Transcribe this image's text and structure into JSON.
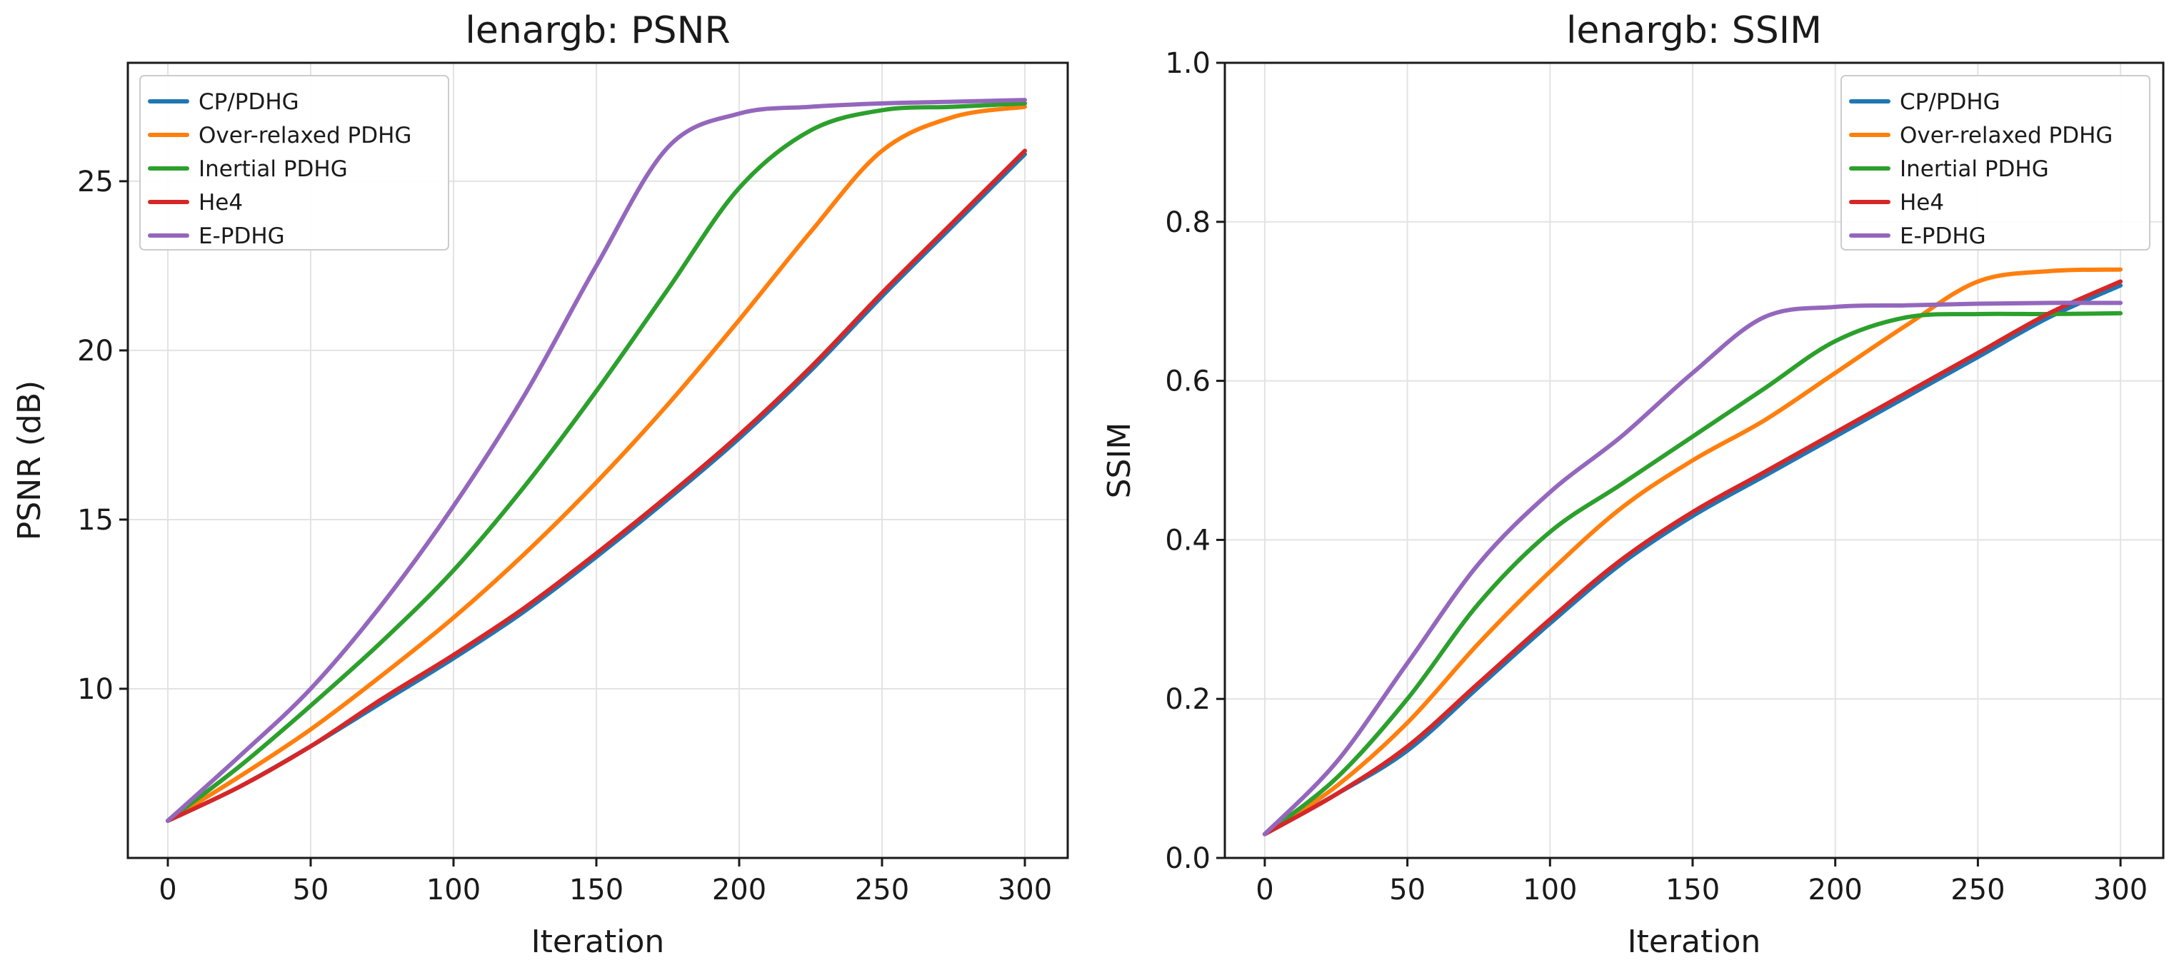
{
  "chart_data": [
    {
      "type": "line",
      "title": "lenargb: PSNR",
      "xlabel": "Iteration",
      "ylabel": "PSNR (dB)",
      "xlim": [
        -14,
        315
      ],
      "ylim": [
        5,
        28.5
      ],
      "xticks": [
        0,
        50,
        100,
        150,
        200,
        250,
        300
      ],
      "yticks": [
        10,
        15,
        20,
        25
      ],
      "grid": true,
      "legend_position": "top-left",
      "x": [
        0,
        25,
        50,
        75,
        100,
        125,
        150,
        175,
        200,
        225,
        250,
        275,
        300
      ],
      "series": [
        {
          "name": "CP/PDHG",
          "color": "#1f77b4",
          "values": [
            6.1,
            7.1,
            8.3,
            9.6,
            10.9,
            12.3,
            13.9,
            15.6,
            17.4,
            19.4,
            21.6,
            23.7,
            25.8
          ]
        },
        {
          "name": "Over-relaxed PDHG",
          "color": "#ff7f0e",
          "values": [
            6.1,
            7.4,
            8.8,
            10.4,
            12.1,
            14.0,
            16.1,
            18.4,
            20.9,
            23.5,
            25.9,
            26.9,
            27.2
          ]
        },
        {
          "name": "Inertial PDHG",
          "color": "#2ca02c",
          "values": [
            6.1,
            7.7,
            9.5,
            11.4,
            13.5,
            16.0,
            18.8,
            21.8,
            24.8,
            26.5,
            27.1,
            27.2,
            27.3
          ]
        },
        {
          "name": "He4",
          "color": "#d62728",
          "values": [
            6.1,
            7.1,
            8.3,
            9.7,
            11.0,
            12.4,
            14.0,
            15.7,
            17.5,
            19.5,
            21.7,
            23.8,
            25.9
          ]
        },
        {
          "name": "E-PDHG",
          "color": "#9467bd",
          "values": [
            6.1,
            8.0,
            10.0,
            12.5,
            15.4,
            18.7,
            22.5,
            26.0,
            27.0,
            27.2,
            27.3,
            27.35,
            27.4
          ]
        }
      ]
    },
    {
      "type": "line",
      "title": "lenargb: SSIM",
      "xlabel": "Iteration",
      "ylabel": "SSIM",
      "xlim": [
        -14,
        315
      ],
      "ylim": [
        0.0,
        1.0
      ],
      "xticks": [
        0,
        50,
        100,
        150,
        200,
        250,
        300
      ],
      "yticks": [
        0.0,
        0.2,
        0.4,
        0.6,
        0.8,
        1.0
      ],
      "grid": true,
      "legend_position": "top-right",
      "x": [
        0,
        25,
        50,
        75,
        100,
        125,
        150,
        175,
        200,
        225,
        250,
        275,
        300
      ],
      "series": [
        {
          "name": "CP/PDHG",
          "color": "#1f77b4",
          "values": [
            0.03,
            0.08,
            0.135,
            0.215,
            0.295,
            0.37,
            0.43,
            0.48,
            0.53,
            0.58,
            0.63,
            0.68,
            0.72
          ]
        },
        {
          "name": "Over-relaxed PDHG",
          "color": "#ff7f0e",
          "values": [
            0.03,
            0.09,
            0.17,
            0.27,
            0.36,
            0.44,
            0.5,
            0.55,
            0.61,
            0.67,
            0.725,
            0.738,
            0.74
          ]
        },
        {
          "name": "Inertial PDHG",
          "color": "#2ca02c",
          "values": [
            0.03,
            0.1,
            0.2,
            0.32,
            0.41,
            0.47,
            0.53,
            0.59,
            0.65,
            0.68,
            0.684,
            0.684,
            0.685
          ]
        },
        {
          "name": "He4",
          "color": "#d62728",
          "values": [
            0.03,
            0.08,
            0.14,
            0.22,
            0.3,
            0.375,
            0.435,
            0.485,
            0.535,
            0.585,
            0.635,
            0.685,
            0.725
          ]
        },
        {
          "name": "E-PDHG",
          "color": "#9467bd",
          "values": [
            0.03,
            0.12,
            0.245,
            0.37,
            0.46,
            0.53,
            0.61,
            0.68,
            0.693,
            0.695,
            0.697,
            0.698,
            0.698
          ]
        }
      ]
    }
  ]
}
